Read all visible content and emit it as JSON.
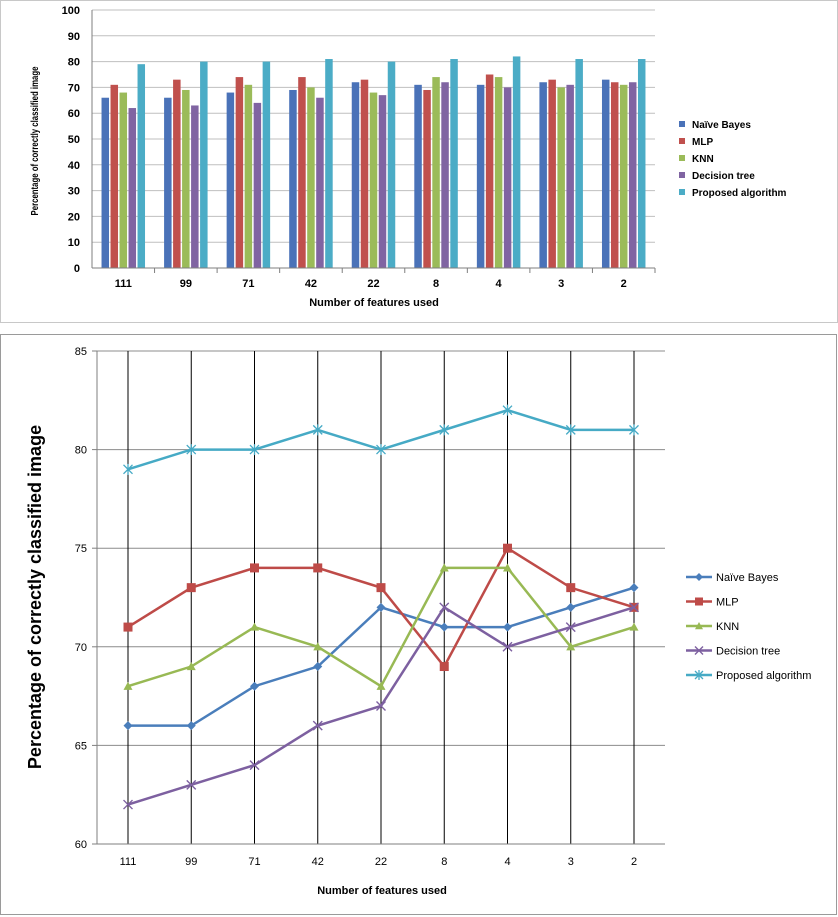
{
  "chart_data": [
    {
      "type": "bar",
      "categories": [
        "111",
        "99",
        "71",
        "42",
        "22",
        "8",
        "4",
        "3",
        "2"
      ],
      "xlabel": "Number of features used",
      "ylabel": "Percentage of correctly classified image",
      "ylim": [
        0,
        100
      ],
      "yticks": [
        "0",
        "10",
        "20",
        "30",
        "40",
        "50",
        "60",
        "70",
        "80",
        "90",
        "100"
      ],
      "grid": "horizontal",
      "legend": "right",
      "series": [
        {
          "name": "Naïve Bayes",
          "color": "#4a72b8",
          "values": [
            66,
            66,
            68,
            69,
            72,
            71,
            71,
            72,
            73
          ]
        },
        {
          "name": "MLP",
          "color": "#c0504d",
          "values": [
            71,
            73,
            74,
            74,
            73,
            69,
            75,
            73,
            72
          ]
        },
        {
          "name": "KNN",
          "color": "#9bbb59",
          "values": [
            68,
            69,
            71,
            70,
            68,
            74,
            74,
            70,
            71
          ]
        },
        {
          "name": "Decision tree",
          "color": "#8064a2",
          "values": [
            62,
            63,
            64,
            66,
            67,
            72,
            70,
            71,
            72
          ]
        },
        {
          "name": "Proposed algorithm",
          "color": "#4bacc6",
          "values": [
            79,
            80,
            80,
            81,
            80,
            81,
            82,
            81,
            81
          ]
        }
      ]
    },
    {
      "type": "line",
      "categories": [
        "111",
        "99",
        "71",
        "42",
        "22",
        "8",
        "4",
        "3",
        "2"
      ],
      "xlabel": "Number of features used",
      "ylabel": "Percentage of correctly classified image",
      "ylim": [
        60,
        85
      ],
      "yticks": [
        "60",
        "65",
        "70",
        "75",
        "80",
        "85"
      ],
      "grid": "horizontal and vertical",
      "legend": "right",
      "series": [
        {
          "name": "Naïve Bayes",
          "color": "#4a7ebb",
          "marker": "diamond",
          "values": [
            66,
            66,
            68,
            69,
            72,
            71,
            71,
            72,
            73
          ]
        },
        {
          "name": "MLP",
          "color": "#be4b48",
          "marker": "square",
          "values": [
            71,
            73,
            74,
            74,
            73,
            69,
            75,
            73,
            72
          ]
        },
        {
          "name": "KNN",
          "color": "#98b954",
          "marker": "triangle",
          "values": [
            68,
            69,
            71,
            70,
            68,
            74,
            74,
            70,
            71
          ]
        },
        {
          "name": "Decision tree",
          "color": "#7d60a0",
          "marker": "x",
          "values": [
            62,
            63,
            64,
            66,
            67,
            72,
            70,
            71,
            72
          ]
        },
        {
          "name": "Proposed algorithm",
          "color": "#46aac5",
          "marker": "star",
          "values": [
            79,
            80,
            80,
            81,
            80,
            81,
            82,
            81,
            81
          ]
        }
      ]
    }
  ]
}
